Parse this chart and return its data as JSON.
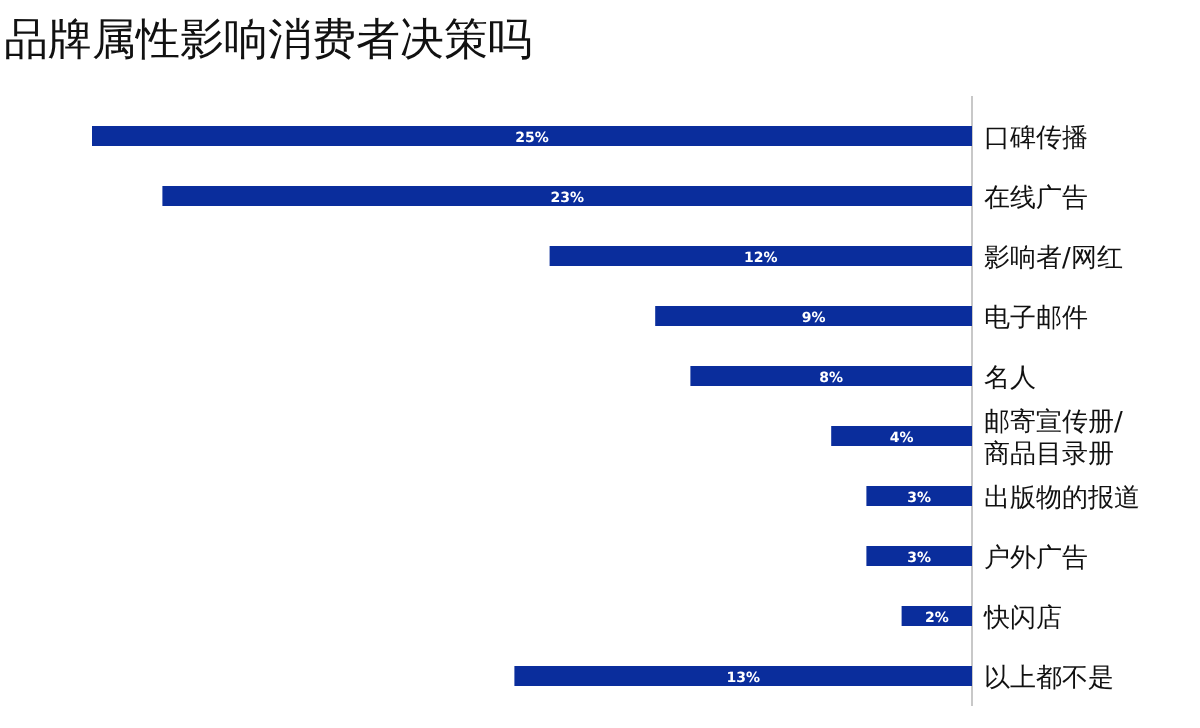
{
  "chart_data": {
    "type": "bar",
    "orientation": "horizontal",
    "title": "品牌属性影响消费者决策吗",
    "categories": [
      "口碑传播",
      "在线广告",
      "影响者/网红",
      "电子邮件",
      "名人",
      "邮寄宣传册/\n商品目录册",
      "出版物的报道",
      "户外广告",
      "快闪店",
      "以上都不是"
    ],
    "values": [
      25,
      23,
      12,
      9,
      8,
      4,
      3,
      3,
      2,
      13
    ],
    "value_labels": [
      "25%",
      "23%",
      "12%",
      "9%",
      "8%",
      "4%",
      "3%",
      "3%",
      "2%",
      "13%"
    ],
    "color": "#0a2d9c"
  }
}
